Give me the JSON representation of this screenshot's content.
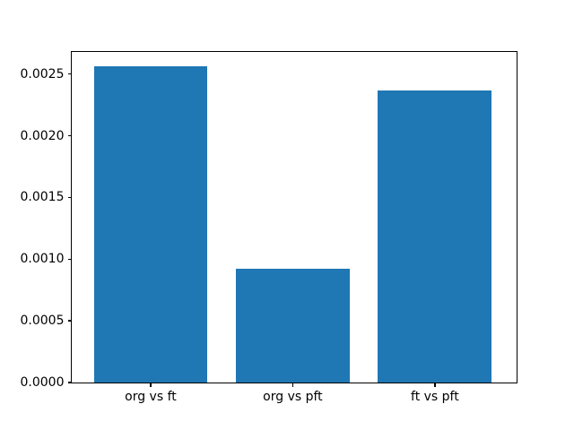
{
  "chart_data": {
    "type": "bar",
    "categories": [
      "org vs ft",
      "org vs pft",
      "ft vs pft"
    ],
    "values": [
      0.00256,
      0.00092,
      0.00237
    ],
    "title": "",
    "xlabel": "",
    "ylabel": "",
    "ylim": [
      0,
      0.002679
    ],
    "xlim": [
      -0.555,
      2.575
    ],
    "yticks": [
      0.0,
      0.0005,
      0.001,
      0.0015,
      0.002,
      0.0025
    ],
    "ytick_labels": [
      "0.0000",
      "0.0005",
      "0.0010",
      "0.0015",
      "0.0020",
      "0.0025"
    ],
    "bar_width": 0.8,
    "bar_color": "#1f77b4",
    "background_color": "#ffffff",
    "spine_color": "#000000",
    "grid": false,
    "legend": null
  }
}
